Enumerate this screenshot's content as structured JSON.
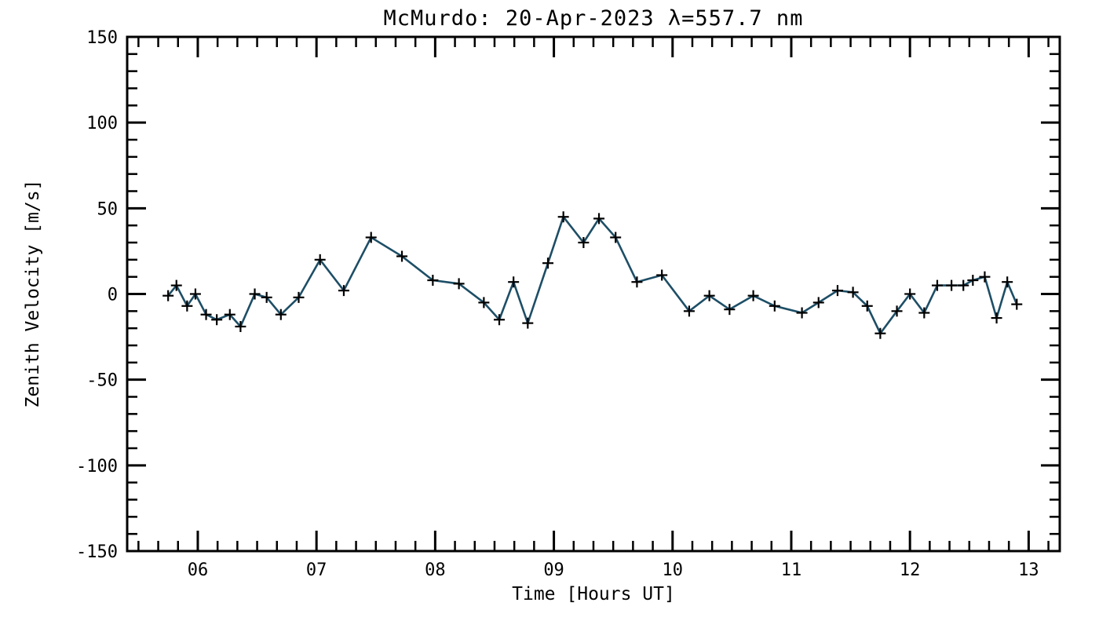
{
  "chart_data": {
    "type": "line",
    "title": "McMurdo: 20-Apr-2023 λ=557.7 nm",
    "xlabel": "Time [Hours UT]",
    "ylabel": "Zenith Velocity [m/s]",
    "xlim": [
      5.405,
      13.262
    ],
    "ylim": [
      -150,
      150
    ],
    "grid": false,
    "legend": "none",
    "x_major_ticks": [
      6,
      7,
      8,
      9,
      10,
      11,
      12,
      13
    ],
    "x_tick_labels": [
      "06",
      "07",
      "08",
      "09",
      "10",
      "11",
      "12",
      "13"
    ],
    "x_minor_per_hour": 6,
    "y_major_ticks": [
      -150,
      -100,
      -50,
      0,
      50,
      100,
      150
    ],
    "y_tick_labels": [
      "-150",
      "-100",
      "-50",
      "0",
      "50",
      "100",
      "150"
    ],
    "y_minor_step": 10,
    "line_color": "#1d4e66",
    "marker": "plus",
    "marker_color": "#000000",
    "axis_color": "#000000",
    "series": [
      {
        "name": "zenith_velocity",
        "x": [
          5.75,
          5.82,
          5.91,
          5.98,
          6.07,
          6.16,
          6.27,
          6.36,
          6.48,
          6.58,
          6.7,
          6.85,
          7.03,
          7.23,
          7.46,
          7.72,
          7.98,
          8.2,
          8.41,
          8.54,
          8.66,
          8.78,
          8.95,
          9.08,
          9.25,
          9.38,
          9.52,
          9.7,
          9.91,
          10.14,
          10.31,
          10.48,
          10.68,
          10.86,
          11.09,
          11.23,
          11.39,
          11.52,
          11.64,
          11.75,
          11.89,
          12.0,
          12.12,
          12.23,
          12.35,
          12.45,
          12.53,
          12.63,
          12.73,
          12.82,
          12.9
        ],
        "y": [
          -1,
          5,
          -7,
          0,
          -12,
          -15,
          -12,
          -19,
          0,
          -2,
          -12,
          -2,
          20,
          2,
          33,
          22,
          8,
          6,
          -5,
          -15,
          7,
          -17,
          18,
          45,
          30,
          44,
          33,
          7,
          11,
          -10,
          -1,
          -9,
          -1,
          -7,
          -11,
          -5,
          2,
          1,
          -7,
          -23,
          -10,
          0,
          -11,
          5,
          5,
          5,
          8,
          10,
          -14,
          7,
          -6
        ]
      }
    ]
  }
}
